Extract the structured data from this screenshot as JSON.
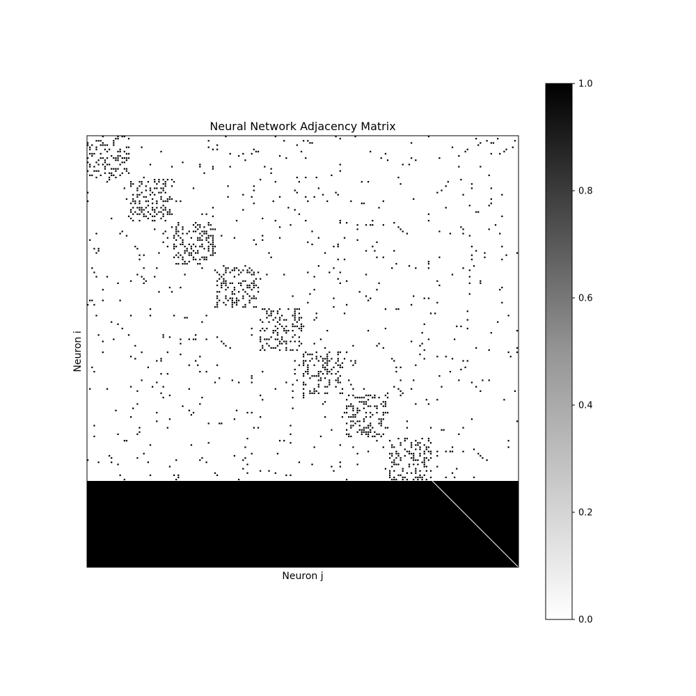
{
  "chart_data": {
    "type": "heatmap",
    "title": "Neural Network Adjacency Matrix",
    "xlabel": "Neuron j",
    "ylabel": "Neuron i",
    "size": 200,
    "cmap": "Greys",
    "colorbar": {
      "vmin": 0.0,
      "vmax": 1.0,
      "ticks": [
        0.0,
        0.2,
        0.4,
        0.6,
        0.8,
        1.0
      ],
      "tick_labels": [
        "0.0",
        "0.2",
        "0.4",
        "0.6",
        "0.8",
        "1.0"
      ],
      "position": "right"
    },
    "structure": {
      "module_count": 8,
      "module_size": 20,
      "module_starts": [
        0,
        20,
        40,
        60,
        80,
        100,
        120,
        140
      ],
      "within_module_density": 0.3,
      "between_module_density": 0.02,
      "dense_rows": [
        160,
        200
      ],
      "dense_value": 1,
      "diagonal_value": 0,
      "diagonal_zero_from_row": 160
    },
    "grid": false,
    "x_ticks": false,
    "y_ticks": false
  }
}
